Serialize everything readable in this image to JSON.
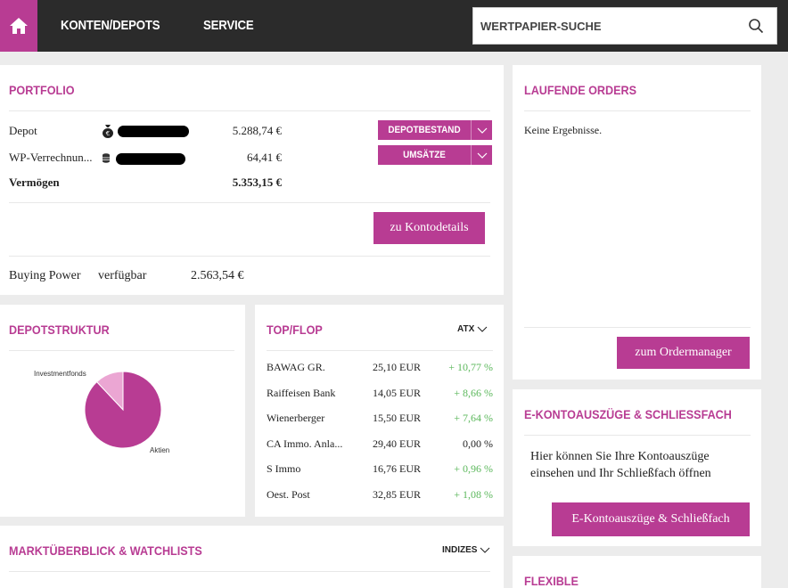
{
  "nav": {
    "konten_depots": "KONTEN/DEPOTS",
    "service": "SERVICE"
  },
  "search": {
    "placeholder": "WERTPAPIER-SUCHE"
  },
  "portfolio": {
    "title": "PORTFOLIO",
    "rows": [
      {
        "label": "Depot",
        "value": "5.288,74 €"
      },
      {
        "label": "WP-Verrechnun...",
        "value": "64,41 €"
      }
    ],
    "total_label": "Vermögen",
    "total_value": "5.353,15 €",
    "btn_depotbestand": "DEPOTBESTAND",
    "btn_umsaetze": "UMSÄTZE",
    "btn_kontodetails": "zu Kontodetails",
    "buying_power_label": "Buying Power",
    "buying_power_sub": "verfügbar",
    "buying_power_value": "2.563,54 €"
  },
  "orders": {
    "title": "LAUFENDE ORDERS",
    "empty": "Keine Ergebnisse.",
    "btn": "zum Ordermanager"
  },
  "depotstruktur": {
    "title": "DEPOTSTRUKTUR",
    "chart_data": {
      "type": "pie",
      "slices": [
        {
          "name": "Aktien",
          "value": 88,
          "color": "#b83c93"
        },
        {
          "name": "Investmentfonds",
          "value": 12,
          "color": "#eba6d3"
        }
      ]
    }
  },
  "topflop": {
    "title": "TOP/FLOP",
    "index_select": "ATX",
    "rows": [
      {
        "name": "BAWAG GR.",
        "price": "25,10 EUR",
        "change": "+ 10,77 %",
        "positive": true
      },
      {
        "name": "Raiffeisen Bank",
        "price": "14,05 EUR",
        "change": "+ 8,66 %",
        "positive": true
      },
      {
        "name": "Wienerberger",
        "price": "15,50 EUR",
        "change": "+ 7,64 %",
        "positive": true
      },
      {
        "name": "CA Immo. Anla...",
        "price": "29,40 EUR",
        "change": "0,00 %",
        "positive": false
      },
      {
        "name": "S Immo",
        "price": "16,76 EUR",
        "change": "+ 0,96 %",
        "positive": true
      },
      {
        "name": "Oest. Post",
        "price": "32,85 EUR",
        "change": "+ 1,08 %",
        "positive": true
      }
    ]
  },
  "ekonto": {
    "title": "E-KONTOAUSZÜGE & SCHLIESSFACH",
    "text1": "Hier können Sie Ihre Kontoauszüge",
    "text2": "einsehen und Ihr Schließfach öffnen",
    "btn": "E-Kontoauszüge & Schließfach"
  },
  "markt": {
    "title": "MARKTÜBERBLICK & WATCHLISTS",
    "select": "INDIZES"
  },
  "flexible": {
    "title": "FLEXIBLE"
  }
}
